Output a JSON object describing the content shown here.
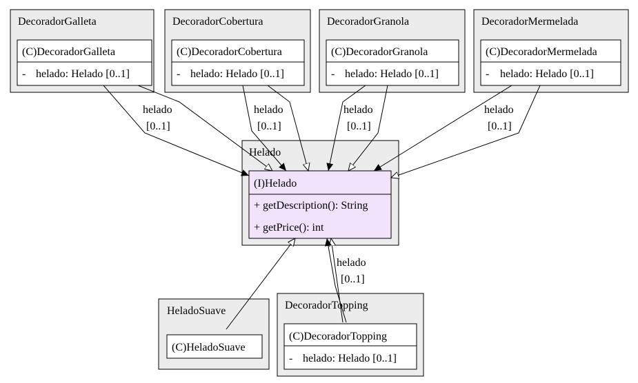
{
  "packages": {
    "galleta": {
      "title": "DecoradorGalleta",
      "cls": "(C)DecoradorGalleta",
      "attr": "helado: Helado [0..1]",
      "vis": "-"
    },
    "cobertura": {
      "title": "DecoradorCobertura",
      "cls": "(C)DecoradorCobertura",
      "attr": "helado: Helado [0..1]",
      "vis": "-"
    },
    "granola": {
      "title": "DecoradorGranola",
      "cls": "(C)DecoradorGranola",
      "attr": "helado: Helado [0..1]",
      "vis": "-"
    },
    "mermelada": {
      "title": "DecoradorMermelada",
      "cls": "(C)DecoradorMermelada",
      "attr": "helado: Helado [0..1]",
      "vis": "-"
    },
    "helado": {
      "title": "Helado",
      "cls": "(I)Helado",
      "op1": "+ getDescription(): String",
      "op2": "+ getPrice(): int"
    },
    "suave": {
      "title": "HeladoSuave",
      "cls": "(C)HeladoSuave"
    },
    "topping": {
      "title": "DecoradorTopping",
      "cls": "(C)DecoradorTopping",
      "attr": "helado: Helado [0..1]",
      "vis": "-"
    }
  },
  "edge_labels": {
    "galleta": {
      "role": "helado",
      "mult": "[0..1]"
    },
    "cobertura": {
      "role": "helado",
      "mult": "[0..1]"
    },
    "granola": {
      "role": "helado",
      "mult": "[0..1]"
    },
    "mermelada": {
      "role": "helado",
      "mult": "[0..1]"
    },
    "topping": {
      "role": "helado",
      "mult": "[0..1]"
    }
  },
  "colors": {
    "interface_fill": "#f0e3fb",
    "package_fill": "#ececec",
    "class_fill": "#ffffff"
  }
}
